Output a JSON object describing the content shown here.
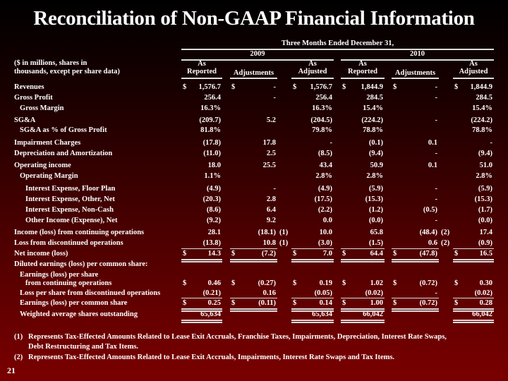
{
  "title": "Reconciliation of Non-GAAP Financial Information",
  "period_header": "Three Months Ended December 31,",
  "years": [
    "2009",
    "2010"
  ],
  "label_header": [
    "($ in millions, shares in",
    "thousands, except per share data)"
  ],
  "columns": [
    {
      "top": "As",
      "bottom": "Reported"
    },
    {
      "top": "",
      "bottom": "Adjustments"
    },
    {
      "top": "As",
      "bottom": "Adjusted"
    },
    {
      "top": "As",
      "bottom": "Reported"
    },
    {
      "top": "",
      "bottom": "Adjustments"
    },
    {
      "top": "As",
      "bottom": "Adjusted"
    }
  ],
  "rows": [
    {
      "label": "Revenues",
      "indent": 0,
      "dollar": [
        true,
        true,
        true,
        true,
        true,
        true
      ],
      "cells": [
        "1,576.7",
        "-",
        "1,576.7",
        "1,844.9",
        "-",
        "1,844.9"
      ]
    },
    {
      "label": "Gross Profit",
      "indent": 0,
      "cells": [
        "256.4",
        "-",
        "256.4",
        "284.5",
        "-",
        "284.5"
      ]
    },
    {
      "label": "Gross Margin",
      "indent": 1,
      "cells": [
        "16.3%",
        "",
        "16.3%",
        "15.4%",
        "",
        "15.4%"
      ]
    },
    {
      "label": "SG&A",
      "indent": 0,
      "cells": [
        "(209.7)",
        "5.2",
        "(204.5)",
        "(224.2)",
        "-",
        "(224.2)"
      ]
    },
    {
      "label": "SG&A as % of Gross Profit",
      "indent": 1,
      "cells": [
        "81.8%",
        "",
        "79.8%",
        "78.8%",
        "",
        "78.8%"
      ]
    },
    {
      "label": "Impairment Charges",
      "indent": 0,
      "cells": [
        "(17.8)",
        "17.8",
        "-",
        "(0.1)",
        "0.1",
        "-"
      ]
    },
    {
      "label": "Depreciation and Amortization",
      "indent": 0,
      "cells": [
        "(11.0)",
        "2.5",
        "(8.5)",
        "(9.4)",
        "-",
        "(9.4)"
      ]
    },
    {
      "label": "Operating income",
      "indent": 0,
      "cells": [
        "18.0",
        "25.5",
        "43.4",
        "50.9",
        "0.1",
        "51.0"
      ]
    },
    {
      "label": "Operating Margin",
      "indent": 1,
      "cells": [
        "1.1%",
        "",
        "2.8%",
        "2.8%",
        "",
        "2.8%"
      ]
    },
    {
      "label": "Interest Expense, Floor Plan",
      "indent": 2,
      "cells": [
        "(4.9)",
        "-",
        "(4.9)",
        "(5.9)",
        "-",
        "(5.9)"
      ]
    },
    {
      "label": "Interest Expense, Other, Net",
      "indent": 2,
      "cells": [
        "(20.3)",
        "2.8",
        "(17.5)",
        "(15.3)",
        "-",
        "(15.3)"
      ]
    },
    {
      "label": "Interest Expense, Non-Cash",
      "indent": 2,
      "cells": [
        "(8.6)",
        "6.4",
        "(2.2)",
        "(1.2)",
        "(0.5)",
        "(1.7)"
      ]
    },
    {
      "label": "Other Income (Expense), Net",
      "indent": 2,
      "cells": [
        "(9.2)",
        "9.2",
        "0.0",
        "(0.0)",
        "-",
        "(0.0)"
      ]
    },
    {
      "label": "Income (loss) from continuing operations",
      "indent": 0,
      "cells": [
        "28.1",
        "(18.1)",
        "10.0",
        "65.8",
        "(48.4)",
        "17.4"
      ],
      "notes": [
        "",
        "(1)",
        "",
        "",
        "(2)",
        ""
      ]
    },
    {
      "label": "Loss from discontinued operations",
      "indent": 0,
      "cells": [
        "(13.8)",
        "10.8",
        "(3.0)",
        "(1.5)",
        "0.6",
        "(0.9)"
      ],
      "notes": [
        "",
        "(1)",
        "",
        "",
        "(2)",
        ""
      ]
    },
    {
      "label": "Net income (loss)",
      "indent": 0,
      "dollar": [
        true,
        true,
        true,
        true,
        true,
        true
      ],
      "cells": [
        "14.3",
        "(7.2)",
        "7.0",
        "64.4",
        "(47.8)",
        "16.5"
      ]
    },
    {
      "label": "Diluted earnings (loss) per common share:",
      "indent": 0,
      "cells": [
        "",
        "",
        "",
        "",
        "",
        ""
      ]
    },
    {
      "label": "Earnings (loss) per share",
      "indent": 1,
      "cells": [
        "",
        "",
        "",
        "",
        "",
        ""
      ]
    },
    {
      "label": "from continuing operations",
      "indent": 2,
      "dollar": [
        true,
        true,
        true,
        true,
        true,
        true
      ],
      "cells": [
        "0.46",
        "(0.27)",
        "0.19",
        "1.02",
        "(0.72)",
        "0.30"
      ]
    },
    {
      "label": "Loss per share from discontinued operations",
      "indent": 1,
      "cells": [
        "(0.21)",
        "0.16",
        "(0.05)",
        "(0.02)",
        "-",
        "(0.02)"
      ]
    },
    {
      "label": "Earnings (loss) per common share",
      "indent": 1,
      "dollar": [
        true,
        true,
        true,
        true,
        true,
        true
      ],
      "cells": [
        "0.25",
        "(0.11)",
        "0.14",
        "1.00",
        "(0.72)",
        "0.28"
      ]
    },
    {
      "label": "Weighted average shares outstanding",
      "indent": 1,
      "cells": [
        "65,634",
        "",
        "65,634",
        "66,042",
        "",
        "66,042"
      ]
    }
  ],
  "currency_symbol": "$",
  "footnotes": [
    {
      "marker": "(1)",
      "lines": [
        "Represents Tax-Effected Amounts Related to Lease Exit Accruals, Franchise Taxes, Impairments, Depreciation, Interest Rate Swaps,",
        "Debt Restructuring and Tax Items."
      ]
    },
    {
      "marker": "(2)",
      "lines": [
        "Represents Tax-Effected Amounts Related to Lease Exit Accruals, Impairments, Interest Rate Swaps and Tax Items."
      ]
    }
  ],
  "page_number": "21"
}
